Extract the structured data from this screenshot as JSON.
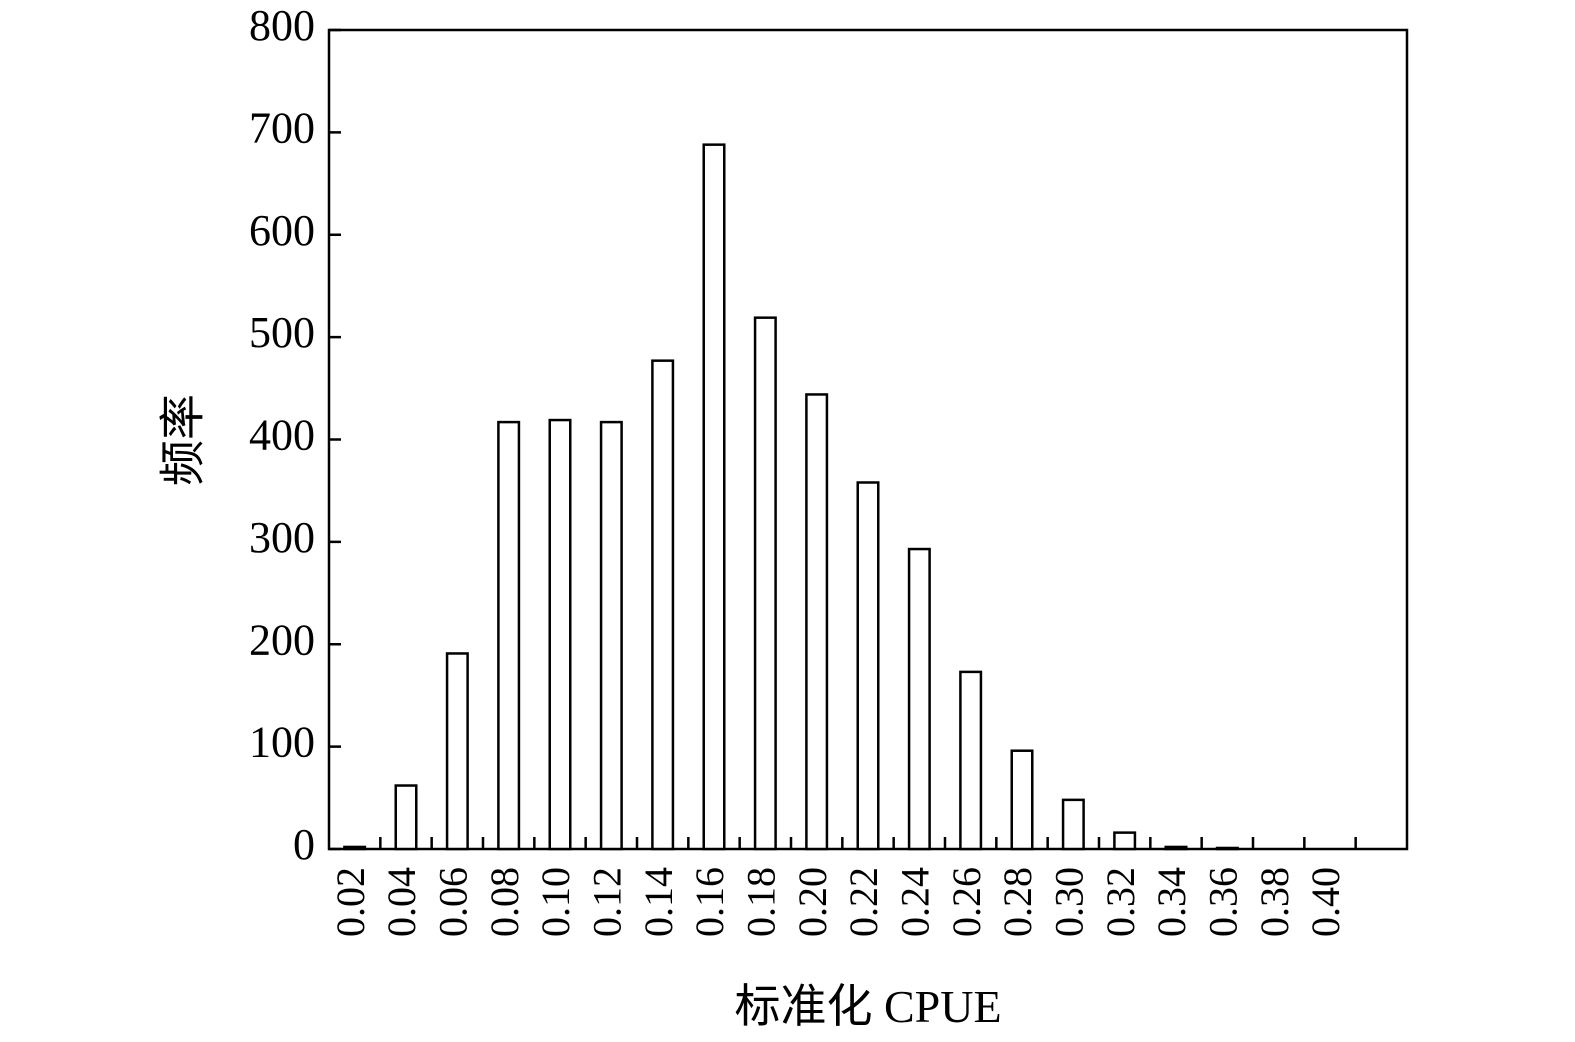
{
  "chart_data": {
    "type": "bar",
    "xlabel": "标准化 CPUE",
    "ylabel": "频率",
    "categories": [
      "0.02",
      "0.04",
      "0.06",
      "0.08",
      "0.10",
      "0.12",
      "0.14",
      "0.16",
      "0.18",
      "0.20",
      "0.22",
      "0.24",
      "0.26",
      "0.28",
      "0.30",
      "0.32",
      "0.34",
      "0.36",
      "0.38",
      "0.40",
      null
    ],
    "values": [
      2,
      62,
      191,
      417,
      419,
      417,
      477,
      688,
      519,
      444,
      358,
      293,
      173,
      96,
      48,
      16,
      2,
      1,
      0,
      0,
      0
    ],
    "color": "#ffffff",
    "ylim": [
      0,
      800
    ],
    "yticks": [
      0,
      100,
      200,
      300,
      400,
      500,
      600,
      700,
      800
    ],
    "grid": false
  }
}
